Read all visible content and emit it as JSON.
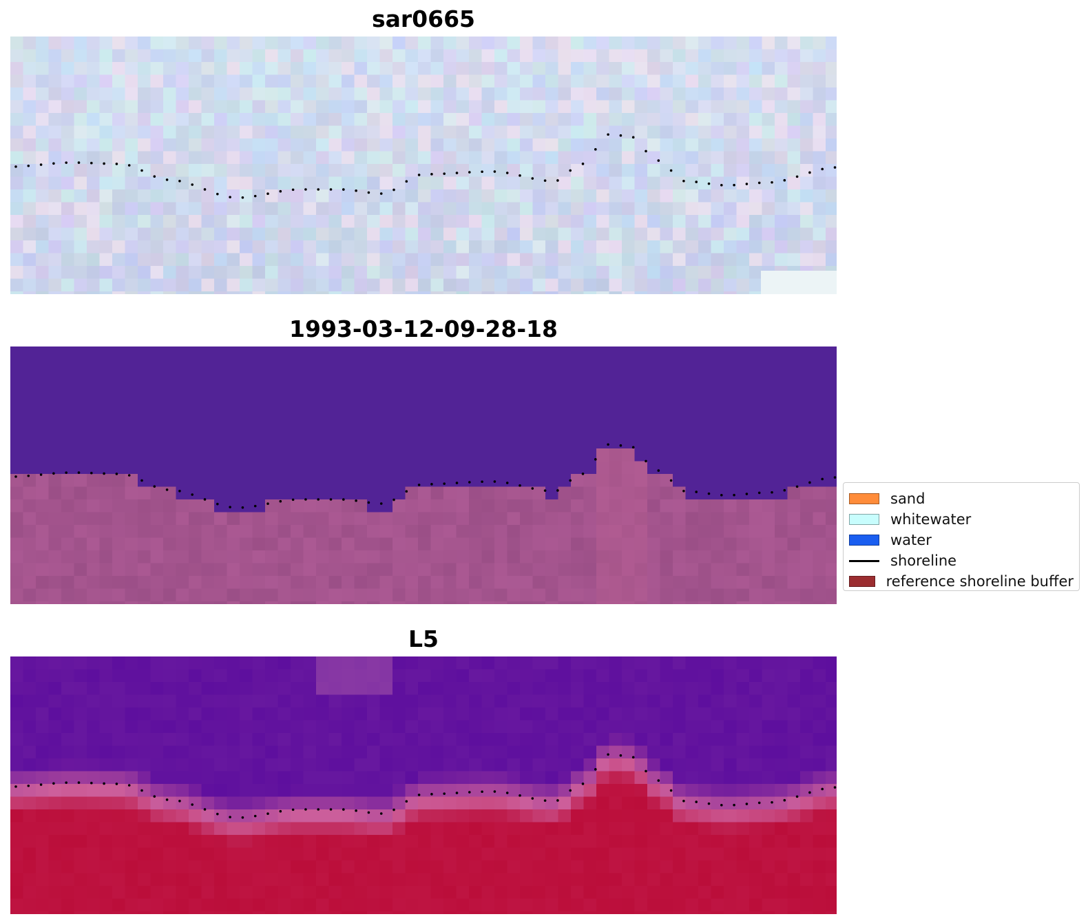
{
  "panels": [
    {
      "title": "sar0665",
      "style": "sar"
    },
    {
      "title": "1993-03-12-09-28-18",
      "style": "classified"
    },
    {
      "title": "L5",
      "style": "index"
    }
  ],
  "legend": {
    "items": [
      {
        "label": "sand",
        "color": "#ff8c3a",
        "kind": "patch"
      },
      {
        "label": "whitewater",
        "color": "#c8fdfd",
        "kind": "patch"
      },
      {
        "label": "water",
        "color": "#1a5ef0",
        "kind": "patch"
      },
      {
        "label": "shoreline",
        "color": "#000000",
        "kind": "line"
      },
      {
        "label": "reference shoreline buffer",
        "color": "#9b2d30",
        "kind": "patch"
      }
    ]
  },
  "colors": {
    "sar_base": "#d3dcf0",
    "classified_water": "#522396",
    "classified_land": "#a3548d",
    "index_top": "#5e0f9e",
    "index_bottom": "#bb0e3a",
    "shoreline_dots": "#000000"
  }
}
